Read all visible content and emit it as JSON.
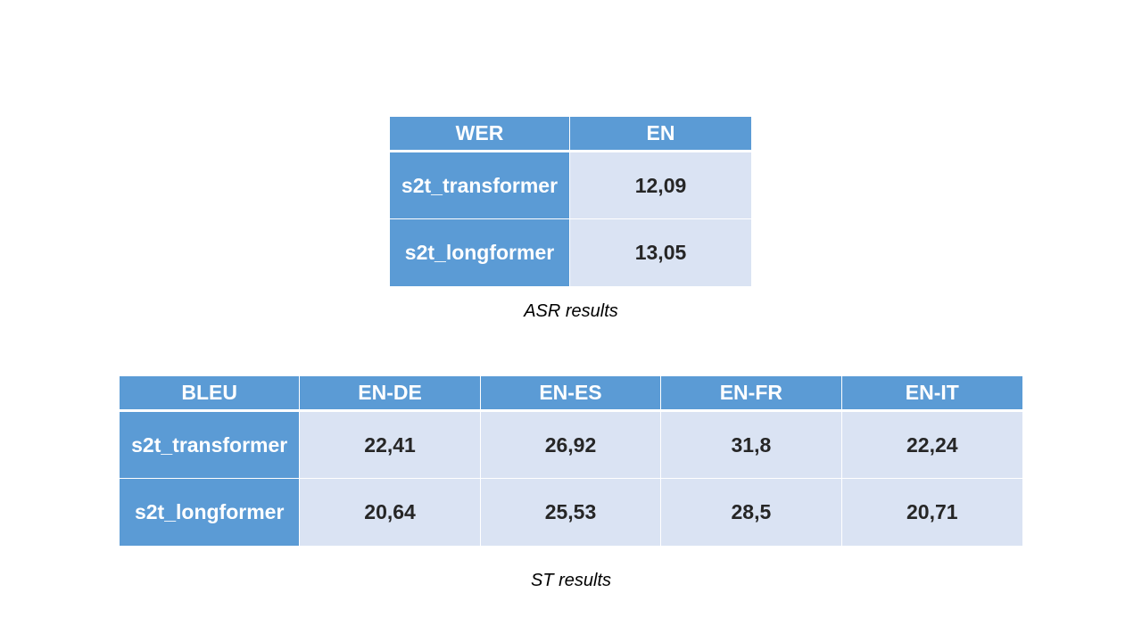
{
  "asr_table": {
    "headers": [
      "WER",
      "EN"
    ],
    "rows": [
      {
        "model": "s2t_transformer",
        "values": [
          "12,09"
        ]
      },
      {
        "model": "s2t_longformer",
        "values": [
          "13,05"
        ]
      }
    ],
    "caption": "ASR results"
  },
  "st_table": {
    "headers": [
      "BLEU",
      "EN-DE",
      "EN-ES",
      "EN-FR",
      "EN-IT"
    ],
    "rows": [
      {
        "model": "s2t_transformer",
        "values": [
          "22,41",
          "26,92",
          "31,8",
          "22,24"
        ]
      },
      {
        "model": "s2t_longformer",
        "values": [
          "20,64",
          "25,53",
          "28,5",
          "20,71"
        ]
      }
    ],
    "caption": "ST results"
  },
  "colors": {
    "header_fill": "#5b9bd5",
    "cell_fill": "#dae3f3",
    "header_text": "#ffffff",
    "cell_text": "#262626"
  }
}
